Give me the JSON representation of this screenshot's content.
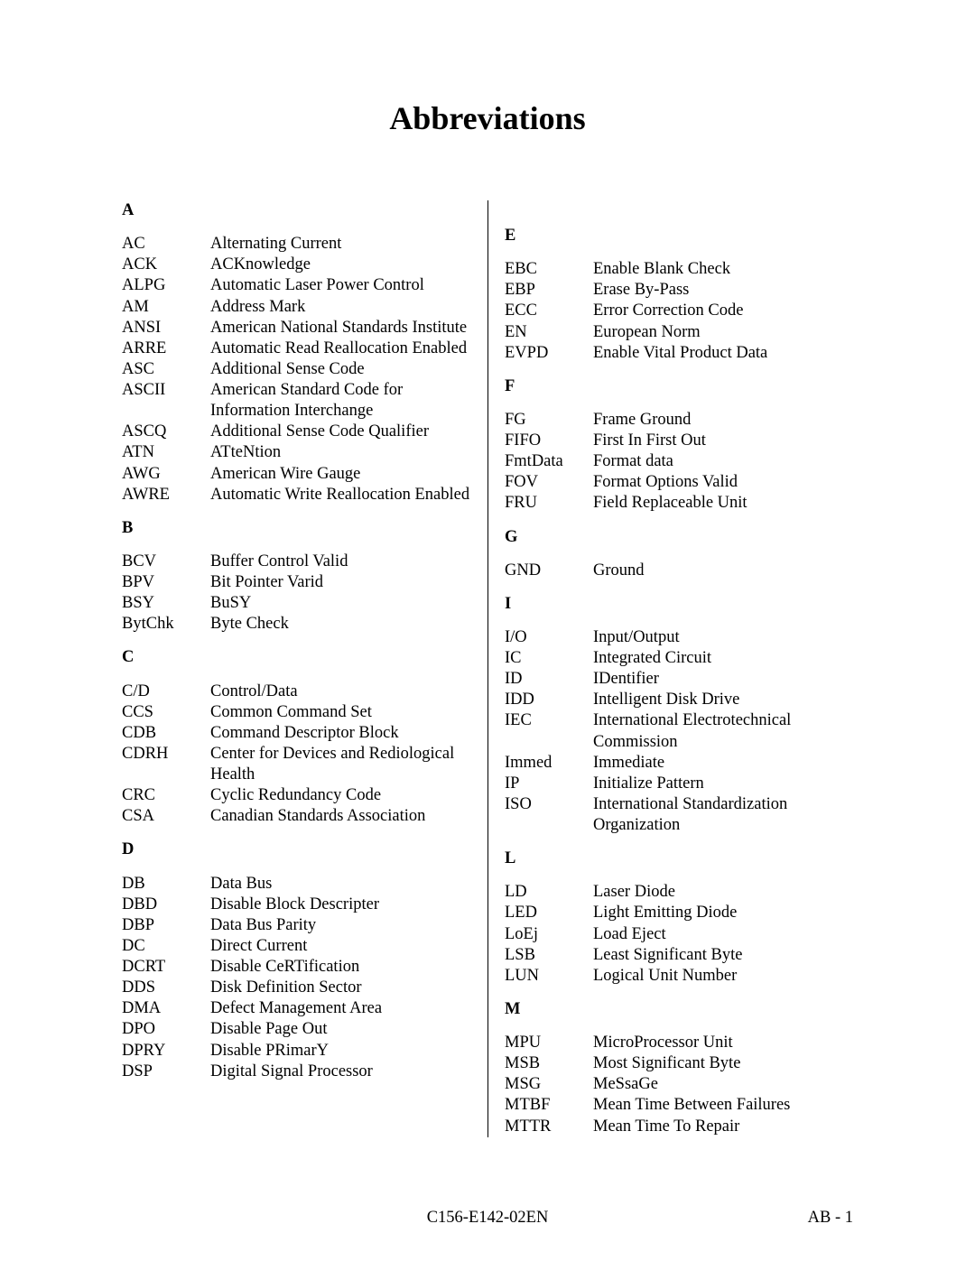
{
  "title": "Abbreviations",
  "footer": {
    "center": "C156-E142-02EN",
    "right": "AB - 1"
  },
  "left": [
    {
      "head": "A"
    },
    {
      "abbr": "AC",
      "def": "Alternating Current"
    },
    {
      "abbr": "ACK",
      "def": "ACKnowledge"
    },
    {
      "abbr": "ALPG",
      "def": "Automatic Laser Power Control"
    },
    {
      "abbr": "AM",
      "def": "Address Mark"
    },
    {
      "abbr": "ANSI",
      "def": "American National Standards Institute"
    },
    {
      "abbr": "ARRE",
      "def": "Automatic Read Reallocation Enabled"
    },
    {
      "abbr": "ASC",
      "def": "Additional Sense Code"
    },
    {
      "abbr": "ASCII",
      "def": "American Standard Code for Information Interchange"
    },
    {
      "abbr": "ASCQ",
      "def": "Additional Sense Code Qualifier"
    },
    {
      "abbr": "ATN",
      "def": "ATteNtion"
    },
    {
      "abbr": "AWG",
      "def": "American Wire Gauge"
    },
    {
      "abbr": "AWRE",
      "def": "Automatic Write Reallocation Enabled"
    },
    {
      "head": "B"
    },
    {
      "abbr": "BCV",
      "def": "Buffer Control Valid"
    },
    {
      "abbr": "BPV",
      "def": "Bit Pointer Varid"
    },
    {
      "abbr": "BSY",
      "def": "BuSY"
    },
    {
      "abbr": "BytChk",
      "def": "Byte Check"
    },
    {
      "head": "C"
    },
    {
      "abbr": "C/D",
      "def": "Control/Data"
    },
    {
      "abbr": "CCS",
      "def": "Common Command Set"
    },
    {
      "abbr": "CDB",
      "def": "Command Descriptor Block"
    },
    {
      "abbr": "CDRH",
      "def": "Center for Devices and Rediological Health"
    },
    {
      "abbr": "CRC",
      "def": "Cyclic Redundancy Code"
    },
    {
      "abbr": "CSA",
      "def": "Canadian Standards Association"
    },
    {
      "head": "D"
    },
    {
      "abbr": "DB",
      "def": "Data Bus"
    },
    {
      "abbr": "DBD",
      "def": "Disable Block Descripter"
    },
    {
      "abbr": "DBP",
      "def": "Data Bus Parity"
    },
    {
      "abbr": "DC",
      "def": "Direct Current"
    },
    {
      "abbr": "DCRT",
      "def": "Disable CeRTification"
    },
    {
      "abbr": "DDS",
      "def": "Disk Definition Sector"
    },
    {
      "abbr": "DMA",
      "def": "Defect Management Area"
    },
    {
      "abbr": "DPO",
      "def": "Disable Page Out"
    },
    {
      "abbr": "DPRY",
      "def": "Disable PRimarY"
    },
    {
      "abbr": "DSP",
      "def": "Digital Signal Processor"
    }
  ],
  "right": [
    {
      "pad": true
    },
    {
      "head": "E"
    },
    {
      "abbr": "EBC",
      "def": "Enable Blank Check"
    },
    {
      "abbr": "EBP",
      "def": "Erase By-Pass"
    },
    {
      "abbr": "ECC",
      "def": "Error Correction Code"
    },
    {
      "abbr": "EN",
      "def": "European Norm"
    },
    {
      "abbr": "EVPD",
      "def": "Enable Vital Product Data"
    },
    {
      "head": "F"
    },
    {
      "abbr": "FG",
      "def": "Frame Ground"
    },
    {
      "abbr": "FIFO",
      "def": "First In First Out"
    },
    {
      "abbr": "FmtData",
      "def": "Format data"
    },
    {
      "abbr": "FOV",
      "def": "Format Options Valid"
    },
    {
      "abbr": "FRU",
      "def": "Field Replaceable Unit"
    },
    {
      "head": "G"
    },
    {
      "abbr": "GND",
      "def": "Ground"
    },
    {
      "head": "I"
    },
    {
      "abbr": "I/O",
      "def": "Input/Output"
    },
    {
      "abbr": "IC",
      "def": "Integrated Circuit"
    },
    {
      "abbr": "ID",
      "def": "IDentifier"
    },
    {
      "abbr": "IDD",
      "def": "Intelligent Disk Drive"
    },
    {
      "abbr": "IEC",
      "def": "International Electrotechnical Commission"
    },
    {
      "abbr": "Immed",
      "def": "Immediate"
    },
    {
      "abbr": "IP",
      "def": "Initialize Pattern"
    },
    {
      "abbr": "ISO",
      "def": "International Standardization Organization"
    },
    {
      "head": "L"
    },
    {
      "abbr": "LD",
      "def": "Laser Diode"
    },
    {
      "abbr": "LED",
      "def": "Light Emitting Diode"
    },
    {
      "abbr": "LoEj",
      "def": "Load Eject"
    },
    {
      "abbr": "LSB",
      "def": "Least Significant Byte"
    },
    {
      "abbr": "LUN",
      "def": "Logical Unit Number"
    },
    {
      "head": "M"
    },
    {
      "abbr": "MPU",
      "def": "MicroProcessor Unit"
    },
    {
      "abbr": "MSB",
      "def": "Most Significant Byte"
    },
    {
      "abbr": "MSG",
      "def": "MeSsaGe"
    },
    {
      "abbr": "MTBF",
      "def": "Mean Time Between Failures"
    },
    {
      "abbr": "MTTR",
      "def": "Mean Time To Repair"
    }
  ]
}
